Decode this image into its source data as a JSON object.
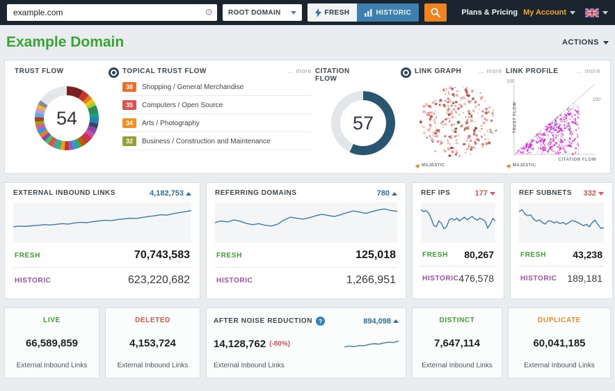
{
  "topbar": {
    "search_value": "example.com",
    "scope": "ROOT DOMAIN",
    "fresh": "FRESH",
    "historic": "HISTORIC",
    "plans": "Plans & Pricing",
    "account": "My Account"
  },
  "header": {
    "title": "Example Domain",
    "actions": "ACTIONS"
  },
  "flow": {
    "trust": {
      "title": "TRUST FLOW",
      "value": "54"
    },
    "topical": {
      "title": "TOPICAL TRUST FLOW",
      "more": "... more",
      "items": [
        {
          "score": "38",
          "label": "Shopping / General Merchandise",
          "color": "#e8702a"
        },
        {
          "score": "35",
          "label": "Computers / Open Source",
          "color": "#d9534f"
        },
        {
          "score": "34",
          "label": "Arts / Photography",
          "color": "#ef9227"
        },
        {
          "score": "32",
          "label": "Business / Construction and Maintenance",
          "color": "#94a13a"
        }
      ]
    },
    "citation": {
      "title": "CITATION FLOW",
      "value": "57"
    },
    "link_graph": {
      "title": "LINK GRAPH",
      "more": "... more",
      "brand": "MAJESTIC"
    },
    "link_profile": {
      "title": "LINK PROFILE",
      "more": "... more",
      "brand": "MAJESTIC",
      "y_label": "TRUST FLOW",
      "x_label": "CITATION FLOW",
      "y_max": "100",
      "x_max": "100"
    }
  },
  "metrics": [
    {
      "title": "EXTERNAL INBOUND LINKS",
      "delta": "4,182,753",
      "trend": "up",
      "fresh_label": "FRESH",
      "fresh": "70,743,583",
      "historic_label": "HISTORIC",
      "historic": "623,220,682",
      "sparkline": [
        38,
        40,
        39,
        41,
        42,
        44,
        43,
        45,
        47,
        46,
        49,
        51,
        50,
        53,
        55,
        57,
        56,
        59,
        61,
        63,
        62,
        65,
        68,
        70,
        73,
        72,
        76,
        79,
        82,
        85
      ]
    },
    {
      "title": "REFERRING DOMAINS",
      "delta": "780",
      "trend": "up",
      "fresh_label": "FRESH",
      "fresh": "125,018",
      "historic_label": "HISTORIC",
      "historic": "1,266,951",
      "sparkline": [
        50,
        55,
        52,
        58,
        54,
        48,
        44,
        47,
        42,
        40,
        46,
        58,
        66,
        63,
        60,
        64,
        70,
        74,
        71,
        68,
        73,
        79,
        84,
        81,
        77,
        82,
        87,
        90,
        85,
        83
      ]
    },
    {
      "title": "REF IPS",
      "delta": "177",
      "trend": "down",
      "fresh_label": "FRESH",
      "fresh": "80,267",
      "historic_label": "HISTORIC",
      "historic": "476,578",
      "sparkline": [
        88,
        82,
        85,
        78,
        62,
        42,
        38,
        55,
        48,
        32,
        38,
        58,
        62,
        57,
        63,
        55,
        61,
        66,
        58,
        64,
        68,
        61,
        57,
        63,
        59,
        54,
        34,
        46,
        62,
        55
      ]
    },
    {
      "title": "REF SUBNETS",
      "delta": "332",
      "trend": "down",
      "fresh_label": "FRESH",
      "fresh": "43,238",
      "historic_label": "HISTORIC",
      "historic": "189,181",
      "sparkline": [
        82,
        88,
        76,
        70,
        73,
        60,
        54,
        58,
        50,
        46,
        56,
        54,
        49,
        53,
        47,
        51,
        45,
        50,
        56,
        54,
        51,
        46,
        41,
        45,
        38,
        50,
        57,
        44,
        33,
        36
      ]
    }
  ],
  "summary": [
    {
      "title": "LIVE",
      "color": "#3f9b35",
      "value": "66,589,859",
      "subtitle": "External Inbound Links"
    },
    {
      "title": "DELETED",
      "color": "#d9534f",
      "value": "4,153,724",
      "subtitle": "External Inbound Links"
    },
    {
      "title": "AFTER NOISE REDUCTION",
      "color": "#3c4650",
      "value": "14,128,762",
      "note": "(-80%)",
      "delta": "894,098",
      "subtitle": "External Inbound Links",
      "sparkline": [
        28,
        34,
        30,
        38,
        36,
        45,
        50,
        47,
        55,
        60,
        58,
        68
      ]
    },
    {
      "title": "DISTINCT",
      "color": "#3f9b35",
      "value": "7,647,114",
      "subtitle": "External Inbound Links"
    },
    {
      "title": "DUPLICATE",
      "color": "#f08a24",
      "value": "60,041,185",
      "subtitle": "External Inbound Links"
    }
  ]
}
